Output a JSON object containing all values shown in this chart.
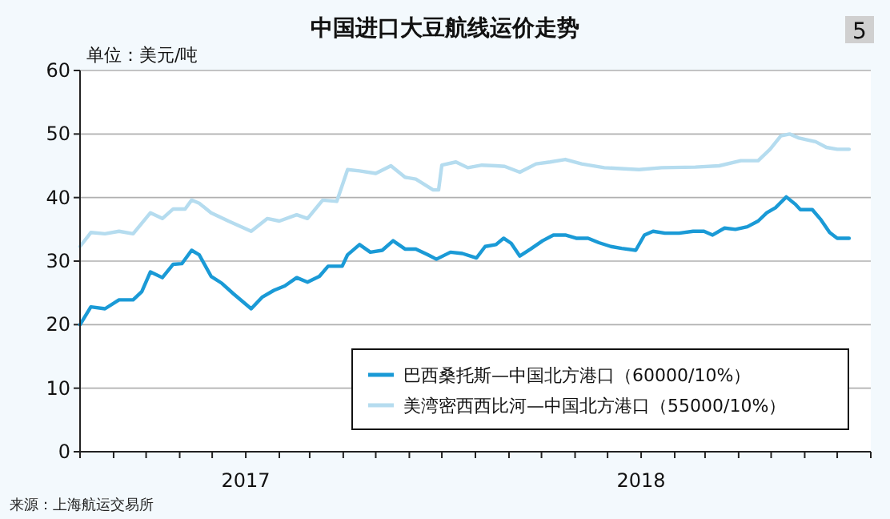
{
  "chart_data": {
    "type": "line",
    "title": "中国进口大豆航线运价走势",
    "ylabel": "单位：美元/吨",
    "annotations": [
      "5",
      "来源：上海航运交易所"
    ],
    "xlim": [
      "2016-08-01",
      "2018-08-01"
    ],
    "xticks": [
      {
        "value": "2016-08-01",
        "label": null
      },
      {
        "value": "2016-09-01",
        "label": null
      },
      {
        "value": "2016-10-01",
        "label": null
      },
      {
        "value": "2016-11-01",
        "label": null
      },
      {
        "value": "2016-12-01",
        "label": null
      },
      {
        "value": "2017-01-01",
        "label": "2017"
      },
      {
        "value": "2017-02-01",
        "label": null
      },
      {
        "value": "2017-03-01",
        "label": null
      },
      {
        "value": "2017-04-01",
        "label": null
      },
      {
        "value": "2017-05-01",
        "label": null
      },
      {
        "value": "2017-06-01",
        "label": null
      },
      {
        "value": "2017-07-01",
        "label": null
      },
      {
        "value": "2017-08-01",
        "label": null
      },
      {
        "value": "2017-09-01",
        "label": null
      },
      {
        "value": "2017-10-01",
        "label": null
      },
      {
        "value": "2017-11-01",
        "label": null
      },
      {
        "value": "2017-12-01",
        "label": null
      },
      {
        "value": "2018-01-01",
        "label": "2018"
      },
      {
        "value": "2018-02-01",
        "label": null
      },
      {
        "value": "2018-03-01",
        "label": null
      },
      {
        "value": "2018-04-01",
        "label": null
      },
      {
        "value": "2018-05-01",
        "label": null
      },
      {
        "value": "2018-06-01",
        "label": null
      },
      {
        "value": "2018-07-01",
        "label": null
      },
      {
        "value": "2018-08-01",
        "label": null
      }
    ],
    "ylim": [
      0,
      60
    ],
    "yticks": [
      0,
      10,
      20,
      30,
      40,
      50,
      60
    ],
    "grid": "y",
    "legend": "bottom right",
    "series": [
      {
        "name": "巴西桑托斯—中国北方港口（60000/10%）",
        "color": "#1a9ad6",
        "x": [
          "2016-08-01",
          "2016-08-11",
          "2016-08-24",
          "2016-09-06",
          "2016-09-19",
          "2016-09-27",
          "2016-10-05",
          "2016-10-16",
          "2016-10-26",
          "2016-11-03",
          "2016-11-12",
          "2016-11-19",
          "2016-11-30",
          "2016-12-10",
          "2016-12-21",
          "2017-01-06",
          "2017-01-16",
          "2017-01-27",
          "2017-02-06",
          "2017-02-17",
          "2017-02-27",
          "2017-03-10",
          "2017-03-18",
          "2017-03-31",
          "2017-04-05",
          "2017-04-16",
          "2017-04-26",
          "2017-05-07",
          "2017-05-17",
          "2017-05-28",
          "2017-06-07",
          "2017-06-18",
          "2017-06-26",
          "2017-07-09",
          "2017-07-20",
          "2017-08-02",
          "2017-08-10",
          "2017-08-20",
          "2017-08-27",
          "2017-09-03",
          "2017-09-11",
          "2017-09-21",
          "2017-10-02",
          "2017-10-12",
          "2017-10-23",
          "2017-11-02",
          "2017-11-13",
          "2017-11-23",
          "2017-12-04",
          "2017-12-14",
          "2017-12-27",
          "2018-01-04",
          "2018-01-12",
          "2018-01-23",
          "2018-02-05",
          "2018-02-18",
          "2018-02-28",
          "2018-03-08",
          "2018-03-19",
          "2018-03-29",
          "2018-04-09",
          "2018-04-19",
          "2018-04-27",
          "2018-05-05",
          "2018-05-15",
          "2018-05-23",
          "2018-05-28",
          "2018-06-08",
          "2018-06-16",
          "2018-06-24",
          "2018-07-01",
          "2018-07-12"
        ],
        "values": [
          20.0,
          22.8,
          22.5,
          23.9,
          23.9,
          25.2,
          28.3,
          27.4,
          29.5,
          29.6,
          31.7,
          31.0,
          27.6,
          26.5,
          24.8,
          22.5,
          24.3,
          25.4,
          26.1,
          27.4,
          26.7,
          27.6,
          29.2,
          29.2,
          31.0,
          32.6,
          31.4,
          31.7,
          33.2,
          31.9,
          31.9,
          31.0,
          30.3,
          31.4,
          31.2,
          30.5,
          32.3,
          32.6,
          33.6,
          32.8,
          30.8,
          31.9,
          33.2,
          34.1,
          34.1,
          33.6,
          33.6,
          32.9,
          32.3,
          32.0,
          31.7,
          34.1,
          34.7,
          34.4,
          34.4,
          34.7,
          34.7,
          34.1,
          35.2,
          35.0,
          35.4,
          36.3,
          37.6,
          38.4,
          40.1,
          39.0,
          38.1,
          38.1,
          36.5,
          34.5,
          33.6,
          33.6
        ]
      },
      {
        "name": "美湾密西西比河—中国北方港口（55000/10%）",
        "color": "#b5dcef",
        "x": [
          "2016-08-01",
          "2016-08-11",
          "2016-08-24",
          "2016-09-06",
          "2016-09-19",
          "2016-10-05",
          "2016-10-16",
          "2016-10-26",
          "2016-11-06",
          "2016-11-12",
          "2016-11-19",
          "2016-11-30",
          "2016-12-16",
          "2017-01-06",
          "2017-01-21",
          "2017-02-01",
          "2017-02-17",
          "2017-02-27",
          "2017-03-13",
          "2017-03-26",
          "2017-04-05",
          "2017-04-16",
          "2017-05-01",
          "2017-05-15",
          "2017-05-28",
          "2017-06-07",
          "2017-06-23",
          "2017-06-28",
          "2017-07-01",
          "2017-07-14",
          "2017-07-25",
          "2017-08-07",
          "2017-08-20",
          "2017-08-28",
          "2017-09-11",
          "2017-09-26",
          "2017-10-09",
          "2017-10-23",
          "2017-11-07",
          "2017-11-28",
          "2017-12-30",
          "2018-01-20",
          "2018-02-20",
          "2018-03-14",
          "2018-04-03",
          "2018-04-19",
          "2018-04-30",
          "2018-05-10",
          "2018-05-18",
          "2018-05-26",
          "2018-06-11",
          "2018-06-21",
          "2018-07-01",
          "2018-07-12"
        ],
        "values": [
          32.3,
          34.5,
          34.3,
          34.7,
          34.3,
          37.6,
          36.7,
          38.2,
          38.2,
          39.6,
          39.1,
          37.6,
          36.3,
          34.7,
          36.7,
          36.3,
          37.3,
          36.7,
          39.6,
          39.4,
          44.4,
          44.2,
          43.8,
          45.0,
          43.2,
          42.9,
          41.2,
          41.2,
          45.1,
          45.6,
          44.7,
          45.1,
          45.0,
          44.9,
          44.0,
          45.3,
          45.6,
          46.0,
          45.3,
          44.7,
          44.4,
          44.7,
          44.8,
          45.0,
          45.8,
          45.8,
          47.6,
          49.7,
          50.0,
          49.4,
          48.8,
          47.9,
          47.6,
          47.6
        ]
      }
    ]
  }
}
